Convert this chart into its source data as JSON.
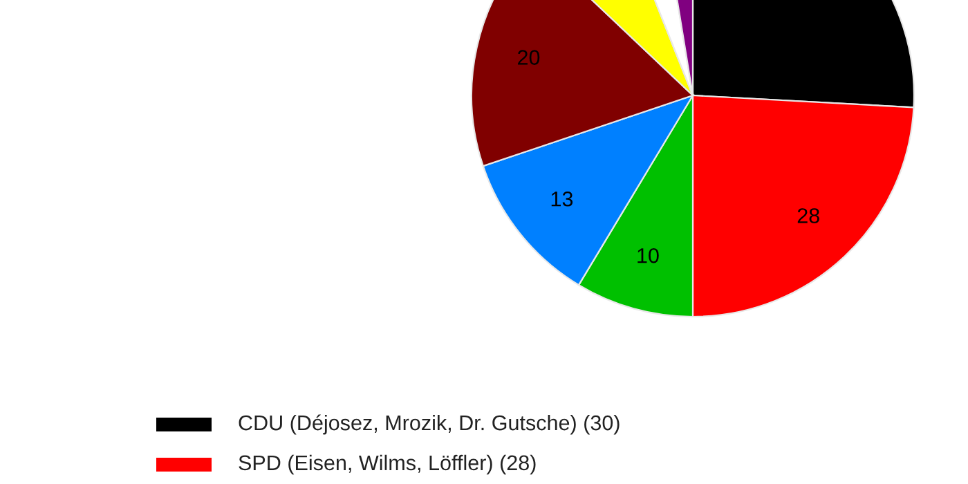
{
  "chart_data": {
    "type": "pie",
    "categories": [
      "CDU (Déjosez, Mrozik, Dr. Gutsche) (30)",
      "SPD (Eisen, Wilms, Löffler) (28)",
      null,
      null,
      null,
      null,
      null,
      null
    ],
    "values": [
      30,
      28,
      10,
      13,
      20,
      8,
      4,
      3
    ],
    "colors": [
      "#000000",
      "#ff0000",
      "#00c000",
      "#0080ff",
      "#800000",
      "#ffff00",
      "#ffffff",
      "#800080"
    ],
    "value_labels": [
      null,
      "28",
      "10",
      "13",
      "20",
      null,
      null,
      null
    ],
    "legend": "bottom left"
  }
}
